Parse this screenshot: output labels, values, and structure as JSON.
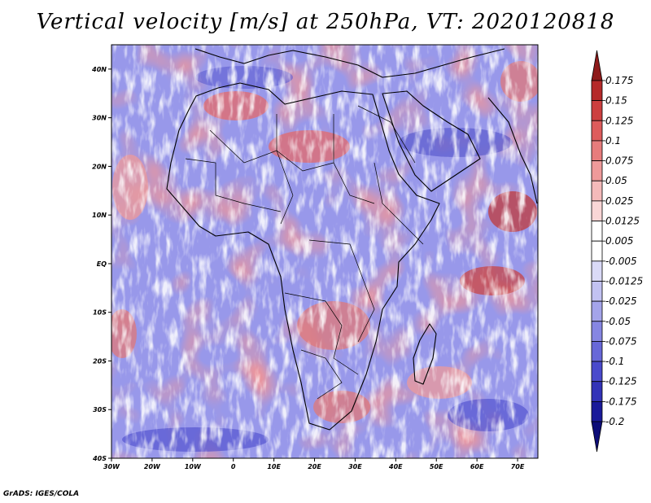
{
  "title": "Vertical velocity [m/s] at 250hPa, VT: 2020120818",
  "footer": "GrADS: IGES/COLA",
  "map": {
    "lon_range": [
      -30,
      75
    ],
    "lat_range": [
      -40,
      45
    ],
    "lat_ticks": [
      {
        "label": "40N",
        "lat": 40
      },
      {
        "label": "30N",
        "lat": 30
      },
      {
        "label": "20N",
        "lat": 20
      },
      {
        "label": "10N",
        "lat": 10
      },
      {
        "label": "EQ",
        "lat": 0
      },
      {
        "label": "10S",
        "lat": -10
      },
      {
        "label": "20S",
        "lat": -20
      },
      {
        "label": "30S",
        "lat": -30
      },
      {
        "label": "40S",
        "lat": -40
      }
    ],
    "lon_ticks": [
      {
        "label": "30W",
        "lon": -30
      },
      {
        "label": "20W",
        "lon": -20
      },
      {
        "label": "10W",
        "lon": -10
      },
      {
        "label": "0",
        "lon": 0
      },
      {
        "label": "10E",
        "lon": 10
      },
      {
        "label": "20E",
        "lon": 20
      },
      {
        "label": "30E",
        "lon": 30
      },
      {
        "label": "40E",
        "lon": 40
      },
      {
        "label": "50E",
        "lon": 50
      },
      {
        "label": "60E",
        "lon": 60
      },
      {
        "label": "70E",
        "lon": 70
      }
    ]
  },
  "colorbar": {
    "labels": [
      "0.175",
      "0.15",
      "0.125",
      "0.1",
      "0.075",
      "0.05",
      "0.025",
      "0.0125",
      "0.005",
      "-0.005",
      "-0.0125",
      "-0.025",
      "-0.05",
      "-0.075",
      "-0.1",
      "-0.125",
      "-0.175",
      "-0.2"
    ],
    "colors": [
      "#8e1a1a",
      "#b52a2a",
      "#cc3f3f",
      "#dd5c5c",
      "#e77c7c",
      "#ee9a9a",
      "#f4baba",
      "#f9d6d6",
      "#ffffff",
      "#ffffff",
      "#dadaf7",
      "#c2c2f2",
      "#a4a4ea",
      "#8686e2",
      "#6868d8",
      "#4a4acc",
      "#3333b8",
      "#1a1a9a",
      "#0d0d78"
    ]
  }
}
